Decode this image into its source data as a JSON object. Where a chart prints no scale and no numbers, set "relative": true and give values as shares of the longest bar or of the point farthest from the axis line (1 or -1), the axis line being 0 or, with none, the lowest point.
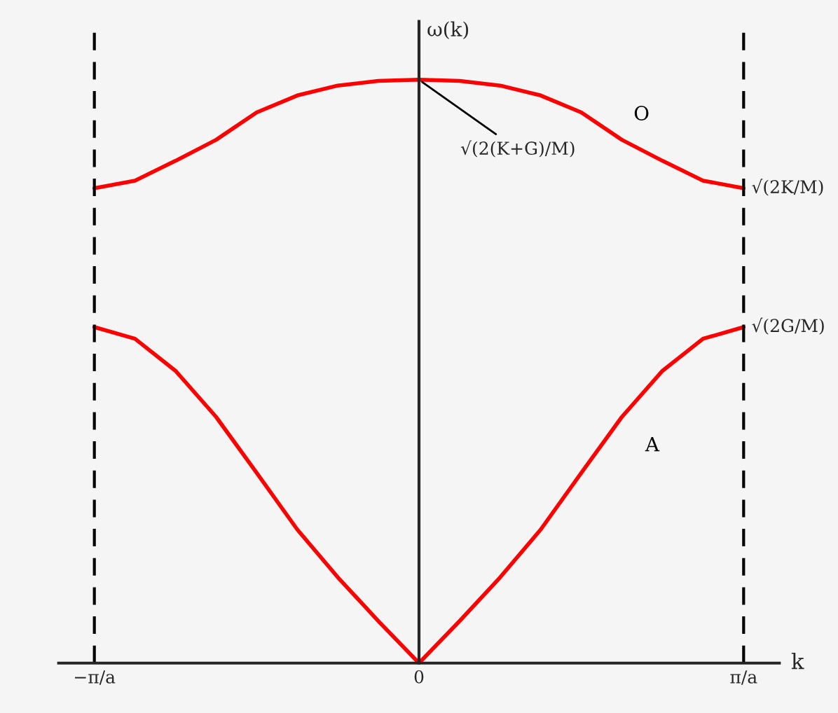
{
  "chart_data": {
    "type": "line",
    "relative": true,
    "xlabel": "k",
    "ylabel": "ω(k)",
    "categories": [
      "−π/a",
      null,
      null,
      null,
      null,
      null,
      null,
      null,
      "0",
      null,
      null,
      null,
      null,
      null,
      null,
      null,
      "π/a"
    ],
    "series": [
      {
        "name": "O",
        "color": "#ff0000",
        "values": [
          0.814,
          0.827,
          0.861,
          0.897,
          0.944,
          0.973,
          0.99,
          0.998,
          1,
          0.998,
          0.99,
          0.973,
          0.944,
          0.897,
          0.861,
          0.827,
          0.814
        ]
      },
      {
        "name": "A",
        "color": "#ff0000",
        "values": [
          0.576,
          0.556,
          0.501,
          0.422,
          0.326,
          0.229,
          0.147,
          0.072,
          0,
          0.072,
          0.147,
          0.229,
          0.326,
          0.422,
          0.501,
          0.556,
          0.576
        ]
      }
    ],
    "ref_lines": [
      {
        "axis": "x",
        "value": "−π/a",
        "line_style": "dashed",
        "color": "#000000"
      },
      {
        "axis": "x",
        "value": "π/a",
        "line_style": "dashed",
        "color": "#000000"
      }
    ],
    "annotations": [
      {
        "text": "√(2(K+G)/M)",
        "x": "0",
        "y": 1
      },
      {
        "text": "√(2K/M)",
        "x": "π/a",
        "y": 0.814
      },
      {
        "text": "√(2G/M)",
        "x": "π/a",
        "y": 0.576
      }
    ],
    "grid": false,
    "line_style": "solid",
    "marker": "none"
  }
}
